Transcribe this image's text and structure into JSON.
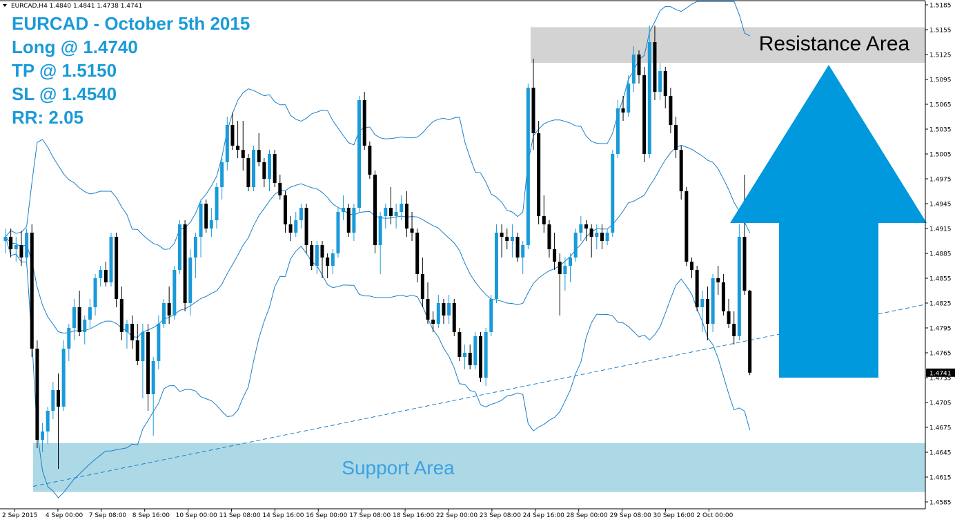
{
  "header": "EURCAD,H4  1.4840 1.4841 1.4738 1.4741",
  "trade_info": [
    "EURCAD - October 5th 2015",
    "Long @ 1.4740",
    "TP @ 1.5150",
    "SL @ 1.4540",
    "RR: 2.05"
  ],
  "colors": {
    "bull_candle": "#1a9ad9",
    "bear_candle": "#000000",
    "bands": "#1a7fc8",
    "info_text": "#1a9ad9",
    "resistance_zone": "#d3d3d3",
    "support_zone": "#add8e6",
    "arrow": "#0099dd"
  },
  "chart_data": {
    "type": "candlestick",
    "symbol": "EURCAD",
    "timeframe": "H4",
    "ohlc_header": {
      "open": 1.484,
      "high": 1.4841,
      "low": 1.4738,
      "close": 1.4741
    },
    "current_price": "1.4741",
    "ylim": [
      1.4585,
      1.5185
    ],
    "y_ticks": [
      "1.5185",
      "1.5155",
      "1.5125",
      "1.5095",
      "1.5065",
      "1.5035",
      "1.5005",
      "1.4975",
      "1.4945",
      "1.4915",
      "1.4885",
      "1.4855",
      "1.4825",
      "1.4795",
      "1.4765",
      "1.4735",
      "1.4705",
      "1.4675",
      "1.4645",
      "1.4615",
      "1.4585"
    ],
    "x_ticks": [
      "2 Sep 2015",
      "4 Sep 00:00",
      "7 Sep 08:00",
      "8 Sep 16:00",
      "10 Sep 00:00",
      "11 Sep 08:00",
      "14 Sep 16:00",
      "16 Sep 00:00",
      "17 Sep 08:00",
      "18 Sep 16:00",
      "22 Sep 00:00",
      "23 Sep 08:00",
      "24 Sep 16:00",
      "28 Sep 00:00",
      "29 Sep 08:00",
      "30 Sep 16:00",
      "2 Oct 00:00"
    ],
    "resistance_area": {
      "label": "Resistance Area",
      "from": 1.5115,
      "to": 1.5158
    },
    "support_area": {
      "label": "Support Area",
      "from": 1.4597,
      "to": 1.4656
    },
    "trendline": {
      "start": {
        "index": 0,
        "price": 1.4597
      },
      "end": {
        "index": 137,
        "price": 1.4775
      }
    },
    "arrow": {
      "direction": "up"
    },
    "candles": [
      [
        1.49,
        1.4915,
        1.4885,
        1.4905
      ],
      [
        1.4905,
        1.4915,
        1.488,
        1.489
      ],
      [
        1.489,
        1.4905,
        1.4875,
        1.4895
      ],
      [
        1.4895,
        1.4912,
        1.487,
        1.488
      ],
      [
        1.488,
        1.4915,
        1.487,
        1.491
      ],
      [
        1.491,
        1.492,
        1.476,
        1.477
      ],
      [
        1.477,
        1.478,
        1.465,
        1.466
      ],
      [
        1.466,
        1.468,
        1.4645,
        1.467
      ],
      [
        1.467,
        1.47,
        1.4655,
        1.4695
      ],
      [
        1.4695,
        1.473,
        1.4685,
        1.472
      ],
      [
        1.472,
        1.474,
        1.4625,
        1.47
      ],
      [
        1.47,
        1.478,
        1.4695,
        1.477
      ],
      [
        1.477,
        1.48,
        1.4755,
        1.4795
      ],
      [
        1.4795,
        1.483,
        1.478,
        1.482
      ],
      [
        1.482,
        1.484,
        1.4785,
        1.479
      ],
      [
        1.479,
        1.481,
        1.4775,
        1.4805
      ],
      [
        1.4805,
        1.483,
        1.4795,
        1.482
      ],
      [
        1.482,
        1.486,
        1.481,
        1.4855
      ],
      [
        1.4855,
        1.487,
        1.4845,
        1.4865
      ],
      [
        1.4865,
        1.4875,
        1.4845,
        1.485
      ],
      [
        1.485,
        1.491,
        1.4845,
        1.4905
      ],
      [
        1.4905,
        1.491,
        1.482,
        1.483
      ],
      [
        1.483,
        1.4845,
        1.478,
        1.479
      ],
      [
        1.479,
        1.4805,
        1.477,
        1.48
      ],
      [
        1.48,
        1.481,
        1.477,
        1.478
      ],
      [
        1.478,
        1.48,
        1.475,
        1.4755
      ],
      [
        1.4755,
        1.48,
        1.471,
        1.479
      ],
      [
        1.479,
        1.48,
        1.4695,
        1.4715
      ],
      [
        1.4715,
        1.476,
        1.4665,
        1.4755
      ],
      [
        1.4755,
        1.481,
        1.4745,
        1.48
      ],
      [
        1.48,
        1.483,
        1.4795,
        1.4825
      ],
      [
        1.4825,
        1.4845,
        1.48,
        1.481
      ],
      [
        1.481,
        1.487,
        1.4805,
        1.4865
      ],
      [
        1.4865,
        1.4925,
        1.486,
        1.492
      ],
      [
        1.492,
        1.4925,
        1.4815,
        1.4825
      ],
      [
        1.4825,
        1.489,
        1.481,
        1.488
      ],
      [
        1.488,
        1.491,
        1.4855,
        1.4905
      ],
      [
        1.4905,
        1.495,
        1.488,
        1.4945
      ],
      [
        1.4945,
        1.495,
        1.491,
        1.4915
      ],
      [
        1.4915,
        1.494,
        1.4905,
        1.4925
      ],
      [
        1.4925,
        1.497,
        1.4915,
        1.4965
      ],
      [
        1.4965,
        1.5,
        1.495,
        1.4995
      ],
      [
        1.4995,
        1.505,
        1.4985,
        1.504
      ],
      [
        1.504,
        1.5055,
        1.501,
        1.5015
      ],
      [
        1.5015,
        1.5045,
        1.5,
        1.501
      ],
      [
        1.501,
        1.5045,
        1.4985,
        1.5
      ],
      [
        1.5,
        1.5005,
        1.496,
        1.4965
      ],
      [
        1.4965,
        1.5015,
        1.496,
        1.501
      ],
      [
        1.501,
        1.503,
        1.499,
        1.4995
      ],
      [
        1.4995,
        1.5,
        1.4965,
        1.4975
      ],
      [
        1.4975,
        1.501,
        1.496,
        1.5005
      ],
      [
        1.5005,
        1.501,
        1.4965,
        1.497
      ],
      [
        1.497,
        1.498,
        1.495,
        1.4955
      ],
      [
        1.4955,
        1.496,
        1.491,
        1.492
      ],
      [
        1.492,
        1.493,
        1.49,
        1.491
      ],
      [
        1.491,
        1.4935,
        1.4905,
        1.4925
      ],
      [
        1.4925,
        1.4945,
        1.4915,
        1.494
      ],
      [
        1.494,
        1.4945,
        1.4885,
        1.4895
      ],
      [
        1.4895,
        1.49,
        1.4865,
        1.487
      ],
      [
        1.487,
        1.49,
        1.486,
        1.4895
      ],
      [
        1.4895,
        1.49,
        1.4855,
        1.488
      ],
      [
        1.488,
        1.4885,
        1.4855,
        1.487
      ],
      [
        1.487,
        1.489,
        1.486,
        1.4885
      ],
      [
        1.4885,
        1.494,
        1.488,
        1.4935
      ],
      [
        1.4935,
        1.4955,
        1.4925,
        1.494
      ],
      [
        1.494,
        1.4945,
        1.4905,
        1.491
      ],
      [
        1.491,
        1.4945,
        1.49,
        1.494
      ],
      [
        1.494,
        1.5075,
        1.4935,
        1.507
      ],
      [
        1.507,
        1.508,
        1.501,
        1.5015
      ],
      [
        1.5015,
        1.502,
        1.4975,
        1.498
      ],
      [
        1.498,
        1.4985,
        1.4885,
        1.4895
      ],
      [
        1.4895,
        1.4935,
        1.486,
        1.493
      ],
      [
        1.493,
        1.4945,
        1.4915,
        1.494
      ],
      [
        1.494,
        1.4965,
        1.492,
        1.493
      ],
      [
        1.493,
        1.4945,
        1.4915,
        1.4935
      ],
      [
        1.4935,
        1.4955,
        1.4925,
        1.4945
      ],
      [
        1.4945,
        1.496,
        1.4905,
        1.4915
      ],
      [
        1.4915,
        1.4935,
        1.49,
        1.491
      ],
      [
        1.491,
        1.4915,
        1.485,
        1.486
      ],
      [
        1.486,
        1.488,
        1.482,
        1.483
      ],
      [
        1.483,
        1.485,
        1.48,
        1.4805
      ],
      [
        1.4805,
        1.4815,
        1.479,
        1.48
      ],
      [
        1.48,
        1.4835,
        1.4795,
        1.4825
      ],
      [
        1.4825,
        1.483,
        1.48,
        1.481
      ],
      [
        1.481,
        1.4835,
        1.48,
        1.4825
      ],
      [
        1.4825,
        1.483,
        1.4785,
        1.479
      ],
      [
        1.479,
        1.4795,
        1.4755,
        1.476
      ],
      [
        1.476,
        1.4775,
        1.4745,
        1.4765
      ],
      [
        1.4765,
        1.4775,
        1.4745,
        1.475
      ],
      [
        1.475,
        1.479,
        1.4745,
        1.4785
      ],
      [
        1.4785,
        1.479,
        1.473,
        1.4735
      ],
      [
        1.4735,
        1.4795,
        1.4725,
        1.479
      ],
      [
        1.479,
        1.4835,
        1.4785,
        1.483
      ],
      [
        1.483,
        1.492,
        1.4825,
        1.491
      ],
      [
        1.491,
        1.492,
        1.488,
        1.4905
      ],
      [
        1.4905,
        1.4915,
        1.489,
        1.49
      ],
      [
        1.49,
        1.492,
        1.488,
        1.4905
      ],
      [
        1.4905,
        1.491,
        1.4875,
        1.488
      ],
      [
        1.488,
        1.49,
        1.486,
        1.4895
      ],
      [
        1.4895,
        1.509,
        1.489,
        1.5085
      ],
      [
        1.5085,
        1.512,
        1.501,
        1.503
      ],
      [
        1.503,
        1.5045,
        1.492,
        1.493
      ],
      [
        1.493,
        1.4955,
        1.491,
        1.492
      ],
      [
        1.492,
        1.4925,
        1.488,
        1.489
      ],
      [
        1.489,
        1.491,
        1.4865,
        1.4875
      ],
      [
        1.4875,
        1.4885,
        1.481,
        1.486
      ],
      [
        1.486,
        1.488,
        1.484,
        1.487
      ],
      [
        1.487,
        1.4885,
        1.485,
        1.488
      ],
      [
        1.488,
        1.4915,
        1.4875,
        1.491
      ],
      [
        1.491,
        1.493,
        1.49,
        1.492
      ],
      [
        1.492,
        1.4925,
        1.49,
        1.4915
      ],
      [
        1.4915,
        1.492,
        1.488,
        1.4905
      ],
      [
        1.4905,
        1.492,
        1.489,
        1.491
      ],
      [
        1.491,
        1.492,
        1.489,
        1.49
      ],
      [
        1.49,
        1.4915,
        1.4895,
        1.491
      ],
      [
        1.491,
        1.501,
        1.4905,
        1.5005
      ],
      [
        1.5005,
        1.507,
        1.5,
        1.506
      ],
      [
        1.506,
        1.5075,
        1.5045,
        1.5055
      ],
      [
        1.5055,
        1.51,
        1.505,
        1.509
      ],
      [
        1.509,
        1.5135,
        1.508,
        1.5125
      ],
      [
        1.5125,
        1.513,
        1.509,
        1.51
      ],
      [
        1.51,
        1.511,
        1.4995,
        1.5005
      ],
      [
        1.5005,
        1.516,
        1.5,
        1.514
      ],
      [
        1.514,
        1.516,
        1.507,
        1.508
      ],
      [
        1.508,
        1.5115,
        1.507,
        1.5105
      ],
      [
        1.5105,
        1.511,
        1.506,
        1.5075
      ],
      [
        1.5075,
        1.5085,
        1.503,
        1.504
      ],
      [
        1.504,
        1.505,
        1.5,
        1.501
      ],
      [
        1.501,
        1.5015,
        1.495,
        1.496
      ],
      [
        1.496,
        1.4965,
        1.487,
        1.4875
      ],
      [
        1.4875,
        1.488,
        1.4855,
        1.4865
      ],
      [
        1.4865,
        1.487,
        1.4815,
        1.482
      ],
      [
        1.482,
        1.484,
        1.479,
        1.483
      ],
      [
        1.483,
        1.4845,
        1.478,
        1.48
      ],
      [
        1.48,
        1.486,
        1.479,
        1.4855
      ],
      [
        1.4855,
        1.487,
        1.4835,
        1.485
      ],
      [
        1.485,
        1.486,
        1.481,
        1.4815
      ],
      [
        1.4815,
        1.483,
        1.4795,
        1.48
      ],
      [
        1.48,
        1.4815,
        1.4775,
        1.4785
      ],
      [
        1.4785,
        1.492,
        1.478,
        1.4905
      ],
      [
        1.4905,
        1.498,
        1.4835,
        1.484
      ],
      [
        1.484,
        1.4841,
        1.4738,
        1.4741
      ]
    ]
  }
}
